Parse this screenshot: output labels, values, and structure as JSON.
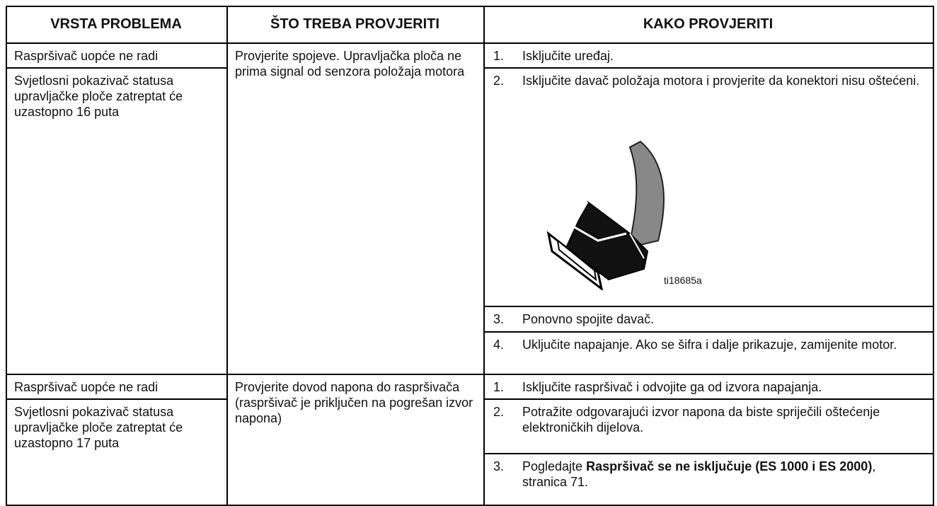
{
  "header": {
    "columns": [
      "VRSTA PROBLEMA",
      "ŠTO TREBA PROVJERITI",
      "KAKO PROVJERITI"
    ]
  },
  "table": {
    "rows": [
      {
        "problems": [
          "Raspršivač uopće ne radi",
          "Svjetlosni pokazivač statusa upravljačke ploče zatreptat će uzastopno 16 puta"
        ],
        "check": "Provjerite spojeve. Upravljačka ploča ne prima signal od senzora položaja motora",
        "steps": [
          {
            "number": "1.",
            "parts": [
              {
                "text": "Isključite uređaj."
              }
            ]
          },
          {
            "number": "2.",
            "parts": [
              {
                "text": "Isključite davač položaja motora i provjerite da konektori nisu oštećeni."
              }
            ]
          },
          {
            "number": "3.",
            "parts": [
              {
                "text": "Ponovno spojite davač."
              }
            ]
          },
          {
            "number": "4.",
            "parts": [
              {
                "text": "Uključite napajanje. Ako se šifra i dalje prikazuje, zamijenite motor."
              }
            ]
          }
        ],
        "figure_label": "ti18685a"
      },
      {
        "problems": [
          "Raspršivač uopće ne radi",
          "Svjetlosni pokazivač statusa upravljačke ploče zatreptat će uzastopno 17 puta"
        ],
        "check": "Provjerite dovod napona do raspršivača (raspršivač je priključen na pogrešan izvor napona)",
        "steps": [
          {
            "number": "1.",
            "parts": [
              {
                "text": "Isključite raspršivač i odvojite ga od izvora napajanja."
              }
            ]
          },
          {
            "number": "2.",
            "parts": [
              {
                "text": "Potražite odgovarajući izvor napona da biste spriječili oštećenje elektroničkih dijelova."
              }
            ]
          },
          {
            "number": "3.",
            "parts": [
              {
                "text": "Pogledajte "
              },
              {
                "text": "Raspršivač se ne isključuje (ES 1000 i ES 2000)",
                "bold": true
              },
              {
                "text": ", stranica 71."
              }
            ]
          }
        ]
      }
    ]
  }
}
